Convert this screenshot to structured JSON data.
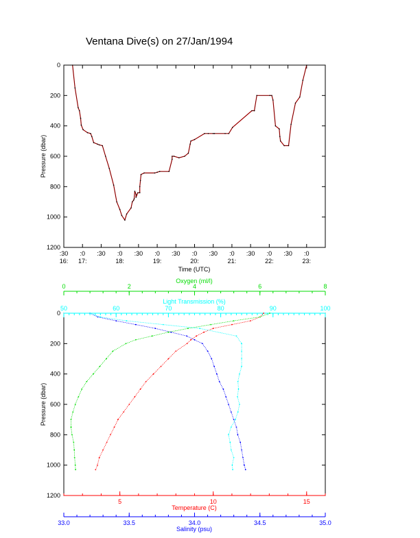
{
  "colors": {
    "axis": "#000000",
    "dive_track": "#cc0000",
    "dive_overlay": "#000000",
    "temperature": "#ff0000",
    "salinity": "#0000ff",
    "oxygen": "#00dd00",
    "light_transmission": "#00ffff"
  },
  "chart_data": [
    {
      "type": "line",
      "title": "Ventana Dive(s) on 27/Jan/1994",
      "xlabel": "Time (UTC)",
      "ylabel": "Pressure (dbar)",
      "x_unit": "minutes after 16:00 UTC",
      "xlim": [
        30,
        450
      ],
      "ylim": [
        1200,
        0
      ],
      "yticks": [
        0,
        200,
        400,
        600,
        800,
        1000,
        1200
      ],
      "xticks": [
        {
          "x": 30,
          "top": ":30",
          "bottom": "16:"
        },
        {
          "x": 60,
          "top": ":0",
          "bottom": "17:"
        },
        {
          "x": 90,
          "top": ":30",
          "bottom": ""
        },
        {
          "x": 120,
          "top": ":0",
          "bottom": "18:"
        },
        {
          "x": 150,
          "top": ":30",
          "bottom": ""
        },
        {
          "x": 180,
          "top": ":0",
          "bottom": "19:"
        },
        {
          "x": 210,
          "top": ":30",
          "bottom": ""
        },
        {
          "x": 240,
          "top": ":0",
          "bottom": "20:"
        },
        {
          "x": 270,
          "top": ":30",
          "bottom": ""
        },
        {
          "x": 300,
          "top": ":0",
          "bottom": "21:"
        },
        {
          "x": 330,
          "top": ":30",
          "bottom": ""
        },
        {
          "x": 360,
          "top": ":0",
          "bottom": "22:"
        },
        {
          "x": 390,
          "top": ":30",
          "bottom": ""
        },
        {
          "x": 420,
          "top": ":0",
          "bottom": "23:"
        }
      ],
      "grid": false,
      "series": [
        {
          "x": [
            44,
            48,
            53,
            55,
            57,
            58,
            61,
            68,
            73,
            75,
            78,
            84,
            87,
            92,
            97,
            103,
            110,
            115,
            120,
            123,
            128,
            131,
            138,
            140,
            142,
            143,
            144,
            146,
            146,
            149,
            152,
            152,
            153,
            154,
            159,
            176,
            180,
            184,
            199,
            204,
            204,
            207,
            215,
            224,
            230,
            233,
            234,
            240,
            256,
            262,
            270,
            272,
            289,
            295,
            301,
            332,
            336,
            336,
            340,
            361,
            364,
            366,
            370,
            376,
            377,
            378,
            384,
            391,
            395,
            402,
            409,
            414,
            420
          ],
          "y": [
            0,
            150,
            280,
            300,
            350,
            395,
            425,
            445,
            450,
            470,
            510,
            520,
            525,
            530,
            600,
            680,
            790,
            900,
            950,
            990,
            1020,
            980,
            940,
            900,
            890,
            880,
            830,
            850,
            870,
            840,
            840,
            800,
            760,
            720,
            710,
            710,
            705,
            700,
            700,
            620,
            600,
            600,
            610,
            600,
            580,
            520,
            500,
            490,
            450,
            450,
            450,
            450,
            450,
            450,
            410,
            300,
            300,
            300,
            200,
            200,
            200,
            230,
            400,
            420,
            470,
            500,
            530,
            530,
            390,
            250,
            210,
            100,
            0
          ]
        }
      ]
    },
    {
      "type": "scatter",
      "ylabel": "Pressure (dbar)",
      "ylim": [
        1200,
        0
      ],
      "yticks": [
        0,
        200,
        400,
        600,
        800,
        1000,
        1200
      ],
      "axes": [
        {
          "position": "bottom",
          "label": "Temperature (C)",
          "range": [
            2.0,
            16.0
          ],
          "ticks": [
            5,
            10,
            15
          ],
          "color_key": "temperature"
        },
        {
          "position": "bottom2",
          "label": "Salinity (psu)",
          "range": [
            33.0,
            35.0
          ],
          "ticks": [
            33.0,
            33.5,
            34.0,
            34.5,
            35.0
          ],
          "color_key": "salinity"
        },
        {
          "position": "top",
          "label": "Oxygen (ml/l)",
          "range": [
            0,
            8
          ],
          "ticks": [
            0,
            2,
            4,
            6,
            8
          ],
          "color_key": "oxygen"
        },
        {
          "position": "top2",
          "label": "Light Transmission (%)",
          "range": [
            50,
            100
          ],
          "ticks": [
            50,
            60,
            70,
            80,
            90,
            100
          ],
          "color_key": "light_transmission"
        }
      ],
      "series": [
        {
          "name": "Temperature",
          "axis": "bottom",
          "depth": [
            0,
            25,
            50,
            75,
            100,
            125,
            150,
            175,
            200,
            250,
            300,
            350,
            400,
            450,
            500,
            550,
            600,
            650,
            700,
            750,
            800,
            850,
            900,
            950,
            1000,
            1030
          ],
          "values": [
            12.7,
            12.5,
            12.0,
            11.0,
            10.0,
            9.5,
            9.1,
            8.8,
            8.6,
            8.0,
            7.6,
            7.2,
            6.8,
            6.4,
            6.1,
            5.8,
            5.5,
            5.2,
            4.9,
            4.7,
            4.5,
            4.3,
            4.1,
            3.9,
            3.8,
            3.7
          ]
        },
        {
          "name": "Salinity",
          "axis": "bottom2",
          "depth": [
            0,
            25,
            50,
            75,
            100,
            125,
            150,
            175,
            200,
            250,
            300,
            350,
            400,
            450,
            500,
            550,
            600,
            650,
            700,
            750,
            800,
            850,
            900,
            950,
            1000,
            1030
          ],
          "values": [
            33.2,
            33.26,
            33.4,
            33.55,
            33.7,
            33.82,
            33.94,
            34.0,
            34.06,
            34.1,
            34.13,
            34.15,
            34.17,
            34.19,
            34.22,
            34.24,
            34.26,
            34.28,
            34.3,
            34.32,
            34.33,
            34.35,
            34.36,
            34.37,
            34.38,
            34.39
          ]
        },
        {
          "name": "Oxygen",
          "axis": "top",
          "depth": [
            0,
            25,
            50,
            75,
            100,
            125,
            150,
            175,
            200,
            250,
            300,
            350,
            400,
            450,
            500,
            550,
            600,
            650,
            700,
            750,
            800,
            850,
            900,
            950,
            1000,
            1030
          ],
          "values": [
            6.3,
            6.0,
            5.2,
            4.5,
            3.8,
            3.2,
            2.7,
            2.2,
            1.9,
            1.5,
            1.3,
            1.1,
            0.9,
            0.7,
            0.55,
            0.45,
            0.35,
            0.28,
            0.22,
            0.22,
            0.25,
            0.3,
            0.32,
            0.33,
            0.35,
            0.36
          ]
        },
        {
          "name": "Light Transmission",
          "axis": "top2",
          "depth": [
            0,
            25,
            50,
            75,
            100,
            150,
            200,
            250,
            300,
            350,
            400,
            450,
            500,
            550,
            600,
            650,
            700,
            750,
            800,
            850,
            900,
            950,
            1000,
            1030
          ],
          "values": [
            55,
            57,
            62,
            69,
            76,
            83,
            84,
            84,
            84,
            84,
            83.6,
            83.3,
            83.4,
            83.2,
            83.6,
            83.3,
            82.8,
            82.0,
            81.5,
            81.8,
            82.0,
            82.5,
            82.2,
            82.3
          ]
        }
      ]
    }
  ]
}
